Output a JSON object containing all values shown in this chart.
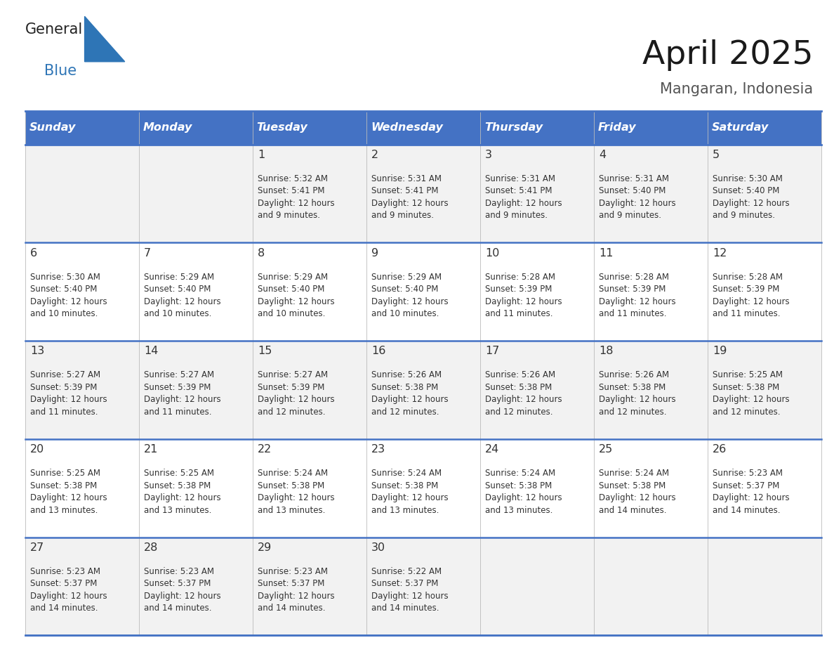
{
  "title": "April 2025",
  "subtitle": "Mangaran, Indonesia",
  "days_of_week": [
    "Sunday",
    "Monday",
    "Tuesday",
    "Wednesday",
    "Thursday",
    "Friday",
    "Saturday"
  ],
  "header_bg": "#4472C4",
  "header_text": "#FFFFFF",
  "row_bg_odd": "#F2F2F2",
  "row_bg_even": "#FFFFFF",
  "border_color": "#4472C4",
  "text_color": "#333333",
  "cell_border_color": "#AAAAAA",
  "calendar_data": [
    [
      null,
      null,
      {
        "day": 1,
        "sunrise": "5:32 AM",
        "sunset": "5:41 PM",
        "daylight": "12 hours\nand 9 minutes."
      },
      {
        "day": 2,
        "sunrise": "5:31 AM",
        "sunset": "5:41 PM",
        "daylight": "12 hours\nand 9 minutes."
      },
      {
        "day": 3,
        "sunrise": "5:31 AM",
        "sunset": "5:41 PM",
        "daylight": "12 hours\nand 9 minutes."
      },
      {
        "day": 4,
        "sunrise": "5:31 AM",
        "sunset": "5:40 PM",
        "daylight": "12 hours\nand 9 minutes."
      },
      {
        "day": 5,
        "sunrise": "5:30 AM",
        "sunset": "5:40 PM",
        "daylight": "12 hours\nand 9 minutes."
      }
    ],
    [
      {
        "day": 6,
        "sunrise": "5:30 AM",
        "sunset": "5:40 PM",
        "daylight": "12 hours\nand 10 minutes."
      },
      {
        "day": 7,
        "sunrise": "5:29 AM",
        "sunset": "5:40 PM",
        "daylight": "12 hours\nand 10 minutes."
      },
      {
        "day": 8,
        "sunrise": "5:29 AM",
        "sunset": "5:40 PM",
        "daylight": "12 hours\nand 10 minutes."
      },
      {
        "day": 9,
        "sunrise": "5:29 AM",
        "sunset": "5:40 PM",
        "daylight": "12 hours\nand 10 minutes."
      },
      {
        "day": 10,
        "sunrise": "5:28 AM",
        "sunset": "5:39 PM",
        "daylight": "12 hours\nand 11 minutes."
      },
      {
        "day": 11,
        "sunrise": "5:28 AM",
        "sunset": "5:39 PM",
        "daylight": "12 hours\nand 11 minutes."
      },
      {
        "day": 12,
        "sunrise": "5:28 AM",
        "sunset": "5:39 PM",
        "daylight": "12 hours\nand 11 minutes."
      }
    ],
    [
      {
        "day": 13,
        "sunrise": "5:27 AM",
        "sunset": "5:39 PM",
        "daylight": "12 hours\nand 11 minutes."
      },
      {
        "day": 14,
        "sunrise": "5:27 AM",
        "sunset": "5:39 PM",
        "daylight": "12 hours\nand 11 minutes."
      },
      {
        "day": 15,
        "sunrise": "5:27 AM",
        "sunset": "5:39 PM",
        "daylight": "12 hours\nand 12 minutes."
      },
      {
        "day": 16,
        "sunrise": "5:26 AM",
        "sunset": "5:38 PM",
        "daylight": "12 hours\nand 12 minutes."
      },
      {
        "day": 17,
        "sunrise": "5:26 AM",
        "sunset": "5:38 PM",
        "daylight": "12 hours\nand 12 minutes."
      },
      {
        "day": 18,
        "sunrise": "5:26 AM",
        "sunset": "5:38 PM",
        "daylight": "12 hours\nand 12 minutes."
      },
      {
        "day": 19,
        "sunrise": "5:25 AM",
        "sunset": "5:38 PM",
        "daylight": "12 hours\nand 12 minutes."
      }
    ],
    [
      {
        "day": 20,
        "sunrise": "5:25 AM",
        "sunset": "5:38 PM",
        "daylight": "12 hours\nand 13 minutes."
      },
      {
        "day": 21,
        "sunrise": "5:25 AM",
        "sunset": "5:38 PM",
        "daylight": "12 hours\nand 13 minutes."
      },
      {
        "day": 22,
        "sunrise": "5:24 AM",
        "sunset": "5:38 PM",
        "daylight": "12 hours\nand 13 minutes."
      },
      {
        "day": 23,
        "sunrise": "5:24 AM",
        "sunset": "5:38 PM",
        "daylight": "12 hours\nand 13 minutes."
      },
      {
        "day": 24,
        "sunrise": "5:24 AM",
        "sunset": "5:38 PM",
        "daylight": "12 hours\nand 13 minutes."
      },
      {
        "day": 25,
        "sunrise": "5:24 AM",
        "sunset": "5:38 PM",
        "daylight": "12 hours\nand 14 minutes."
      },
      {
        "day": 26,
        "sunrise": "5:23 AM",
        "sunset": "5:37 PM",
        "daylight": "12 hours\nand 14 minutes."
      }
    ],
    [
      {
        "day": 27,
        "sunrise": "5:23 AM",
        "sunset": "5:37 PM",
        "daylight": "12 hours\nand 14 minutes."
      },
      {
        "day": 28,
        "sunrise": "5:23 AM",
        "sunset": "5:37 PM",
        "daylight": "12 hours\nand 14 minutes."
      },
      {
        "day": 29,
        "sunrise": "5:23 AM",
        "sunset": "5:37 PM",
        "daylight": "12 hours\nand 14 minutes."
      },
      {
        "day": 30,
        "sunrise": "5:22 AM",
        "sunset": "5:37 PM",
        "daylight": "12 hours\nand 14 minutes."
      },
      null,
      null,
      null
    ]
  ],
  "logo_text_general": "General",
  "logo_text_blue": "Blue",
  "logo_triangle_color": "#2E75B6",
  "logo_general_color": "#222222"
}
